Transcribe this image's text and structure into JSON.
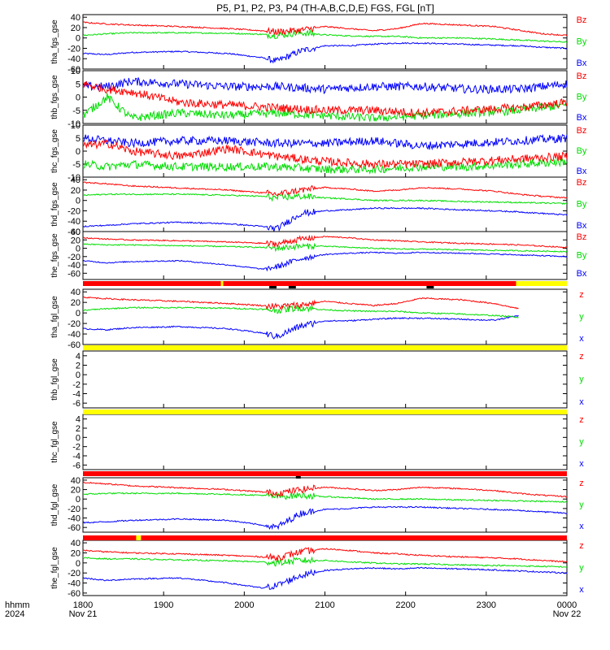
{
  "chart_data": {
    "type": "line",
    "title": "P5, P1, P2, P3, P4 (TH-A,B,C,D,E) FGS, FGL [nT]",
    "time_label": "hhmm",
    "year_label": "2024",
    "x_ticks": [
      {
        "label": "1800",
        "date": "Nov 21"
      },
      {
        "label": "1900",
        "date": ""
      },
      {
        "label": "2000",
        "date": ""
      },
      {
        "label": "2100",
        "date": ""
      },
      {
        "label": "2200",
        "date": ""
      },
      {
        "label": "2300",
        "date": ""
      },
      {
        "label": "0000",
        "date": "Nov 22"
      }
    ],
    "xlim": [
      "1800",
      "0000"
    ],
    "colors": {
      "x": "#0000ff",
      "y": "#00dd00",
      "z": "#ff0000",
      "bar_red": "#ff0000",
      "bar_yellow": "#ffff00",
      "bar_black": "#000000"
    },
    "panels": [
      {
        "ylabel": "tha_fgs_gse",
        "legend": [
          "Bz",
          "By",
          "Bx"
        ],
        "ylim": [
          -60,
          45
        ],
        "ticks": [
          "40",
          "20",
          "0",
          "-20",
          "-40",
          "-60"
        ],
        "has_data": true,
        "knots_x": [
          0,
          0.05,
          0.1,
          0.2,
          0.3,
          0.37,
          0.4,
          0.45,
          0.5,
          0.55,
          0.6,
          0.65,
          0.7,
          0.78,
          0.85,
          0.9,
          0.95,
          1.0
        ],
        "series": {
          "z": [
            30,
            27,
            25,
            22,
            18,
            14,
            12,
            15,
            22,
            18,
            14,
            18,
            28,
            25,
            22,
            15,
            8,
            5
          ],
          "y": [
            5,
            8,
            10,
            10,
            9,
            7,
            5,
            10,
            6,
            4,
            3,
            3,
            0,
            0,
            -2,
            -4,
            -6,
            -8
          ],
          "x": [
            -30,
            -32,
            -28,
            -26,
            -30,
            -38,
            -45,
            -25,
            -15,
            -15,
            -12,
            -10,
            -10,
            -12,
            -14,
            -15,
            -18,
            -20
          ]
        }
      },
      {
        "ylabel": "thb_fgs_gse",
        "legend": [
          "Bz",
          "By",
          "Bx"
        ],
        "ylim": [
          -10,
          10
        ],
        "ticks": [
          "10",
          "5",
          "0",
          "-5",
          "-10"
        ],
        "has_data": true,
        "knots_x": [
          0,
          0.05,
          0.1,
          0.2,
          0.3,
          0.4,
          0.5,
          0.6,
          0.7,
          0.8,
          0.9,
          1.0
        ],
        "series": {
          "z": [
            5,
            3,
            2,
            -2,
            -3,
            -4,
            -5,
            -5,
            -6,
            -5,
            -4,
            -2
          ],
          "y": [
            -7,
            0,
            -8,
            -6,
            -7,
            -6,
            -7,
            -8,
            -7,
            -6,
            -5,
            -3
          ],
          "x": [
            4,
            4,
            6,
            5,
            4,
            4,
            3,
            4,
            4,
            3,
            3,
            5
          ]
        }
      },
      {
        "ylabel": "thc_fgs_gse",
        "legend": [
          "Bz",
          "By",
          "Bx"
        ],
        "ylim": [
          -10,
          10
        ],
        "ticks": [
          "10",
          "5",
          "0",
          "-5",
          "-10"
        ],
        "has_data": true,
        "knots_x": [
          0,
          0.05,
          0.1,
          0.2,
          0.3,
          0.4,
          0.5,
          0.6,
          0.7,
          0.8,
          0.9,
          1.0
        ],
        "series": {
          "z": [
            2,
            3,
            0,
            -2,
            1,
            -2,
            -4,
            -5,
            -5,
            -4,
            -3,
            -2
          ],
          "y": [
            -5,
            -6,
            -5,
            -6,
            -6,
            -6,
            -7,
            -7,
            -6,
            -6,
            -5,
            -4
          ],
          "x": [
            5,
            4,
            3,
            4,
            4,
            3,
            3,
            4,
            2,
            3,
            4,
            5
          ]
        }
      },
      {
        "ylabel": "thd_fgs_gse",
        "legend": [
          "Bz",
          "By",
          "Bx"
        ],
        "ylim": [
          -60,
          45
        ],
        "ticks": [
          "40",
          "20",
          "0",
          "-20",
          "-40",
          "-60"
        ],
        "has_data": true,
        "knots_x": [
          0,
          0.05,
          0.1,
          0.2,
          0.3,
          0.37,
          0.4,
          0.45,
          0.5,
          0.55,
          0.6,
          0.65,
          0.7,
          0.78,
          0.85,
          0.9,
          0.95,
          1.0
        ],
        "series": {
          "z": [
            35,
            32,
            28,
            24,
            20,
            15,
            12,
            20,
            25,
            22,
            18,
            20,
            25,
            22,
            18,
            12,
            8,
            5
          ],
          "y": [
            10,
            12,
            12,
            12,
            10,
            8,
            5,
            8,
            5,
            3,
            0,
            0,
            0,
            -2,
            -3,
            -4,
            -5,
            -6
          ],
          "x": [
            -50,
            -48,
            -45,
            -42,
            -45,
            -50,
            -55,
            -25,
            -20,
            -18,
            -15,
            -15,
            -15,
            -18,
            -20,
            -22,
            -25,
            -28
          ]
        }
      },
      {
        "ylabel": "the_fgs_gse",
        "legend": [
          "Bz",
          "By",
          "Bx"
        ],
        "ylim": [
          -75,
          40
        ],
        "ticks": [
          "40",
          "20",
          "0",
          "-20",
          "-40",
          "-60"
        ],
        "has_data": true,
        "knots_x": [
          0,
          0.05,
          0.1,
          0.2,
          0.3,
          0.37,
          0.4,
          0.45,
          0.5,
          0.55,
          0.6,
          0.65,
          0.7,
          0.78,
          0.85,
          0.9,
          0.95,
          1.0
        ],
        "series": {
          "z": [
            25,
            22,
            20,
            18,
            15,
            12,
            10,
            22,
            28,
            25,
            20,
            18,
            15,
            12,
            10,
            8,
            5,
            2
          ],
          "y": [
            10,
            8,
            8,
            6,
            4,
            2,
            0,
            5,
            5,
            2,
            0,
            -2,
            -2,
            -4,
            -5,
            -6,
            -7,
            -8
          ],
          "x": [
            -30,
            -35,
            -32,
            -30,
            -40,
            -50,
            -45,
            -25,
            -15,
            -12,
            -10,
            -12,
            -10,
            -12,
            -14,
            -16,
            -18,
            -20
          ]
        }
      },
      {
        "ylabel": "tha_fgl_gse",
        "legend": [
          "z",
          "y",
          "x"
        ],
        "ylim": [
          -60,
          45
        ],
        "ticks": [
          "40",
          "20",
          "0",
          "-20",
          "-40",
          "-60"
        ],
        "has_data": true,
        "data_end": 0.9,
        "knots_x": [
          0,
          0.05,
          0.1,
          0.2,
          0.3,
          0.37,
          0.4,
          0.45,
          0.5,
          0.55,
          0.6,
          0.65,
          0.7,
          0.78,
          0.85,
          0.9
        ],
        "series": {
          "z": [
            30,
            27,
            25,
            22,
            18,
            14,
            12,
            15,
            22,
            18,
            14,
            18,
            28,
            25,
            18,
            8
          ],
          "y": [
            5,
            8,
            10,
            10,
            9,
            7,
            5,
            10,
            6,
            4,
            3,
            3,
            0,
            -2,
            -5,
            -8
          ],
          "x": [
            -30,
            -32,
            -28,
            -26,
            -30,
            -38,
            -45,
            -25,
            -15,
            -15,
            -12,
            -10,
            -10,
            -12,
            -14,
            -5
          ]
        }
      },
      {
        "ylabel": "thb_fgl_gse",
        "legend": [
          "z",
          "y",
          "x"
        ],
        "ylim": [
          -7,
          5
        ],
        "ticks": [
          "4",
          "2",
          "0",
          "-2",
          "-4",
          "-6"
        ],
        "has_data": false
      },
      {
        "ylabel": "thc_fgl_gse",
        "legend": [
          "z",
          "y",
          "x"
        ],
        "ylim": [
          -7,
          5
        ],
        "ticks": [
          "4",
          "2",
          "0",
          "-2",
          "-4",
          "-6"
        ],
        "has_data": false
      },
      {
        "ylabel": "thd_fgl_gse",
        "legend": [
          "z",
          "y",
          "x"
        ],
        "ylim": [
          -70,
          45
        ],
        "ticks": [
          "40",
          "20",
          "0",
          "-20",
          "-40",
          "-60"
        ],
        "has_data": true,
        "knots_x": [
          0,
          0.05,
          0.1,
          0.2,
          0.3,
          0.37,
          0.4,
          0.45,
          0.5,
          0.55,
          0.6,
          0.65,
          0.7,
          0.78,
          0.85,
          0.9,
          0.95,
          1.0
        ],
        "series": {
          "z": [
            35,
            32,
            28,
            24,
            20,
            15,
            12,
            20,
            25,
            22,
            18,
            20,
            25,
            22,
            18,
            12,
            8,
            5
          ],
          "y": [
            10,
            12,
            12,
            12,
            10,
            8,
            5,
            8,
            5,
            3,
            0,
            0,
            0,
            -2,
            -3,
            -4,
            -5,
            -6
          ],
          "x": [
            -50,
            -48,
            -45,
            -42,
            -45,
            -55,
            -60,
            -30,
            -22,
            -20,
            -17,
            -17,
            -17,
            -20,
            -22,
            -24,
            -27,
            -30
          ]
        }
      },
      {
        "ylabel": "the_fgl_gse",
        "legend": [
          "z",
          "y",
          "x"
        ],
        "ylim": [
          -65,
          45
        ],
        "ticks": [
          "40",
          "20",
          "0",
          "-20",
          "-40",
          "-60"
        ],
        "has_data": true,
        "knots_x": [
          0,
          0.05,
          0.1,
          0.2,
          0.3,
          0.37,
          0.4,
          0.45,
          0.5,
          0.55,
          0.6,
          0.65,
          0.7,
          0.78,
          0.85,
          0.9,
          0.95,
          1.0
        ],
        "series": {
          "z": [
            25,
            22,
            20,
            18,
            15,
            12,
            10,
            22,
            28,
            25,
            20,
            18,
            15,
            12,
            10,
            8,
            5,
            2
          ],
          "y": [
            10,
            8,
            8,
            6,
            4,
            2,
            0,
            5,
            5,
            2,
            0,
            -2,
            -2,
            -4,
            -5,
            -6,
            -7,
            -8
          ],
          "x": [
            -30,
            -35,
            -32,
            -30,
            -40,
            -50,
            -45,
            -25,
            -15,
            -12,
            -10,
            -12,
            -10,
            -12,
            -14,
            -16,
            -18,
            -20
          ]
        }
      }
    ],
    "status_bars": [
      {
        "after_panel": 4,
        "segments": [
          {
            "from": 0,
            "to": 0.285,
            "color": "red"
          },
          {
            "from": 0.285,
            "to": 0.29,
            "color": "yellow"
          },
          {
            "from": 0.29,
            "to": 0.895,
            "color": "red"
          },
          {
            "from": 0.895,
            "to": 1,
            "color": "yellow"
          }
        ],
        "marks": [
          [
            0.385,
            0.4
          ],
          [
            0.425,
            0.44
          ],
          [
            0.71,
            0.725
          ]
        ]
      },
      {
        "after_panel": 5,
        "segments": [
          {
            "from": 0,
            "to": 1,
            "color": "yellow"
          }
        ],
        "marks": []
      },
      {
        "after_panel": 6,
        "segments": [
          {
            "from": 0,
            "to": 1,
            "color": "yellow"
          }
        ],
        "marks": []
      },
      {
        "after_panel": 7,
        "segments": [
          {
            "from": 0,
            "to": 1,
            "color": "red"
          }
        ],
        "marks": [
          [
            0.44,
            0.45
          ]
        ]
      },
      {
        "after_panel": 8,
        "segments": [
          {
            "from": 0,
            "to": 0.11,
            "color": "red"
          },
          {
            "from": 0.11,
            "to": 0.12,
            "color": "yellow"
          },
          {
            "from": 0.12,
            "to": 1,
            "color": "red"
          }
        ],
        "marks": []
      }
    ]
  }
}
